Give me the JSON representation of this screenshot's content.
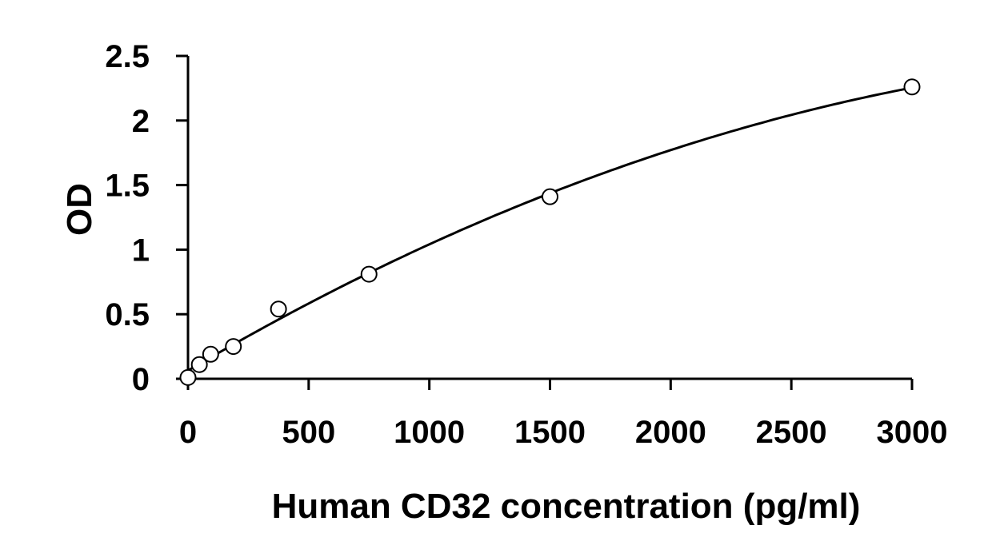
{
  "chart_data": {
    "type": "scatter",
    "title": "",
    "xlabel": "Human CD32 concentration (pg/ml)",
    "ylabel": "OD",
    "xlim": [
      0,
      3000
    ],
    "ylim": [
      0,
      2.5
    ],
    "x_ticks": [
      "0",
      "500",
      "1000",
      "1500",
      "2000",
      "2500",
      "3000"
    ],
    "y_ticks": [
      "0",
      "0.5",
      "1",
      "1.5",
      "2",
      "2.5"
    ],
    "grid": false,
    "legend": "none",
    "marker": "open-circle",
    "trendline": "smooth-fit",
    "colors": {
      "marker_stroke": "#000000",
      "marker_fill": "#ffffff",
      "line": "#000000",
      "axis": "#000000"
    },
    "series": [
      {
        "x": [
          0,
          47,
          94,
          188,
          375,
          750,
          1500,
          3000
        ],
        "y": [
          0.01,
          0.11,
          0.19,
          0.25,
          0.54,
          0.81,
          1.41,
          2.26
        ]
      }
    ]
  }
}
